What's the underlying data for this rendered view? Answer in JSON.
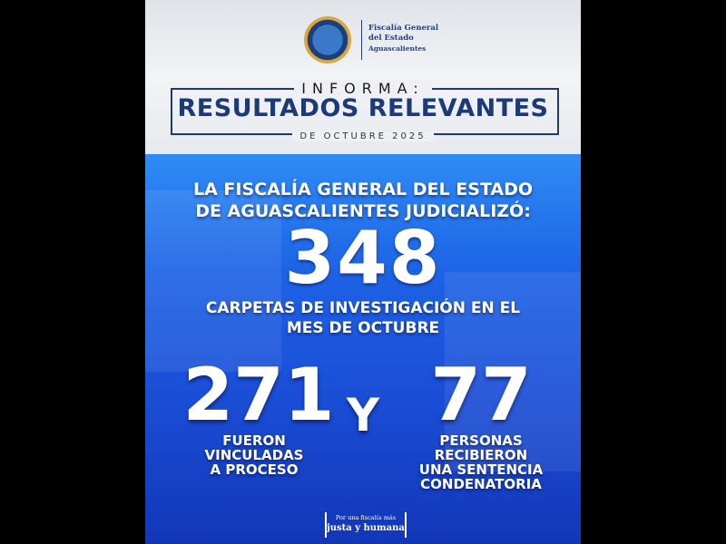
{
  "header": {
    "org_name": [
      "Fiscalía General",
      "del Estado",
      "Aguascalientes"
    ],
    "kicker": "INFORMA:",
    "title": "RESULTADOS RELEVANTES",
    "period": "DE OCTUBRE 2025"
  },
  "main": {
    "lead": "LA FISCALÍA GENERAL DEL ESTADO DE AGUASCALIENTES JUDICIALIZÓ:",
    "total": "348",
    "total_caption": "CARPETAS DE INVESTIGACIÓN EN EL MES DE OCTUBRE",
    "left_number": "271",
    "left_caption": [
      "FUERON",
      "VINCULADAS",
      "A PROCESO"
    ],
    "conjunction": "Y",
    "right_number": "77",
    "right_caption": [
      "PERSONAS",
      "RECIBIERON",
      "UNA SENTENCIA",
      "CONDENATORIA"
    ]
  },
  "footer": {
    "slogan_line1": "Por una fiscalía más",
    "slogan_line2": "justa y humana"
  },
  "colors": {
    "navy": "#1c3a78",
    "blue": "#1d63e6",
    "gold": "#d9a640"
  }
}
